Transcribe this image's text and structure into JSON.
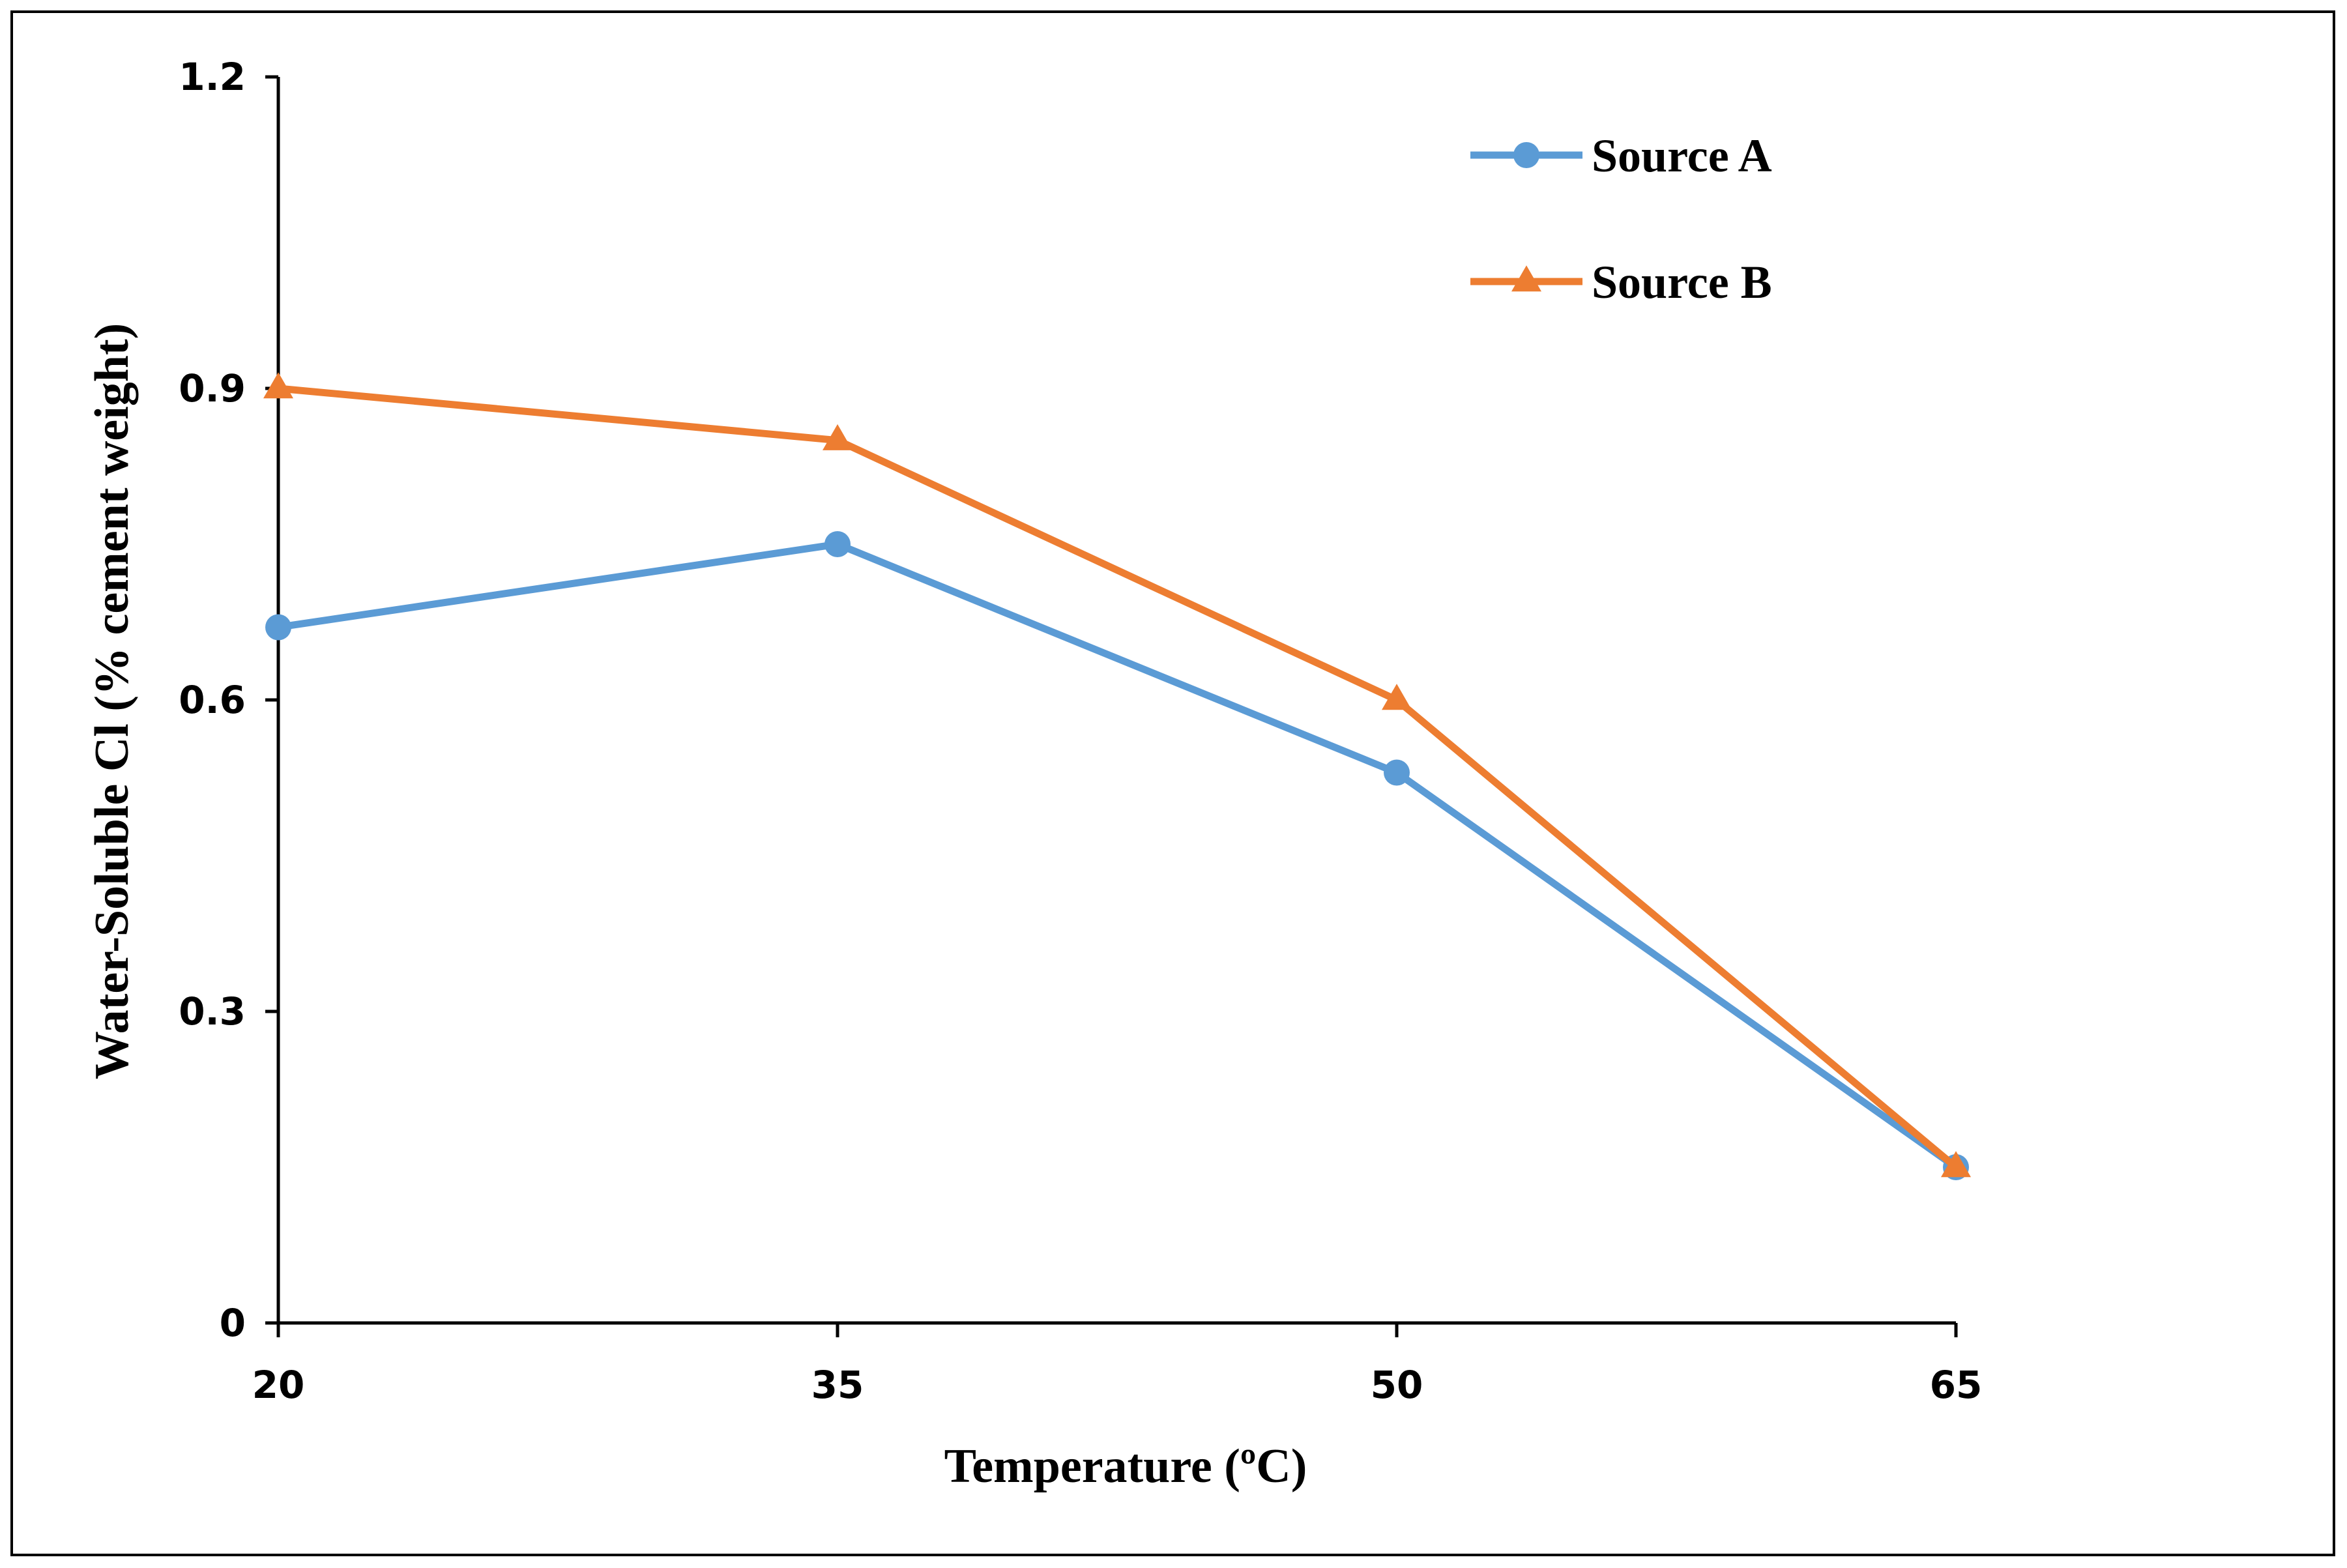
{
  "chart_data": {
    "type": "line",
    "title": "",
    "xlabel": "Temperature  (ºC)",
    "ylabel": "Water-Soluble  Cl (% cement  weight)",
    "categories": [
      "20",
      "35",
      "50",
      "65"
    ],
    "x": [
      20,
      35,
      50,
      65
    ],
    "xlim": [
      20,
      65
    ],
    "ylim": [
      0,
      1.2
    ],
    "yticks": [
      0,
      0.3,
      0.6,
      0.9,
      1.2
    ],
    "ytick_labels": [
      "0",
      "0.3",
      "0.6",
      "0.9",
      "1.2"
    ],
    "grid": false,
    "legend_position": "top-right",
    "series": [
      {
        "name": "Source A",
        "values": [
          0.67,
          0.75,
          0.53,
          0.15
        ],
        "color": "#5B9BD5",
        "marker": "circle"
      },
      {
        "name": "Source B",
        "values": [
          0.9,
          0.85,
          0.6,
          0.15
        ],
        "color": "#ED7D31",
        "marker": "triangle"
      }
    ]
  }
}
